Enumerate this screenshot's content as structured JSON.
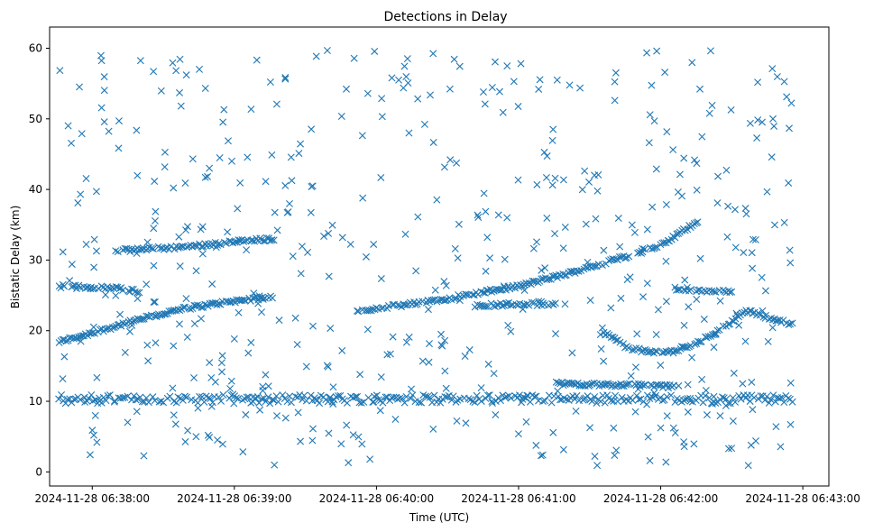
{
  "chart_data": {
    "type": "scatter",
    "title": "Detections in Delay",
    "xlabel": "Time (UTC)",
    "ylabel": "Bistatic Delay (km)",
    "marker": "x",
    "series_color": "#1f77b4",
    "xlim_seconds": [
      -18,
      311
    ],
    "x_origin": "2024-11-28 06:38:00",
    "ylim": [
      -2,
      63
    ],
    "x_ticks": [
      {
        "t": 0,
        "label": "2024-11-28 06:38:00"
      },
      {
        "t": 60,
        "label": "2024-11-28 06:39:00"
      },
      {
        "t": 120,
        "label": "2024-11-28 06:40:00"
      },
      {
        "t": 180,
        "label": "2024-11-28 06:41:00"
      },
      {
        "t": 240,
        "label": "2024-11-28 06:42:00"
      },
      {
        "t": 300,
        "label": "2024-11-28 06:43:00"
      }
    ],
    "y_ticks": [
      0,
      10,
      20,
      30,
      40,
      50,
      60
    ],
    "x_range_seconds": [
      -14,
      296
    ],
    "tracks": [
      {
        "name": "rising-track-a",
        "points": [
          [
            -14,
            18.4
          ],
          [
            -1,
            19.6
          ],
          [
            20,
            21.6
          ],
          [
            40,
            23.2
          ],
          [
            60,
            24.2
          ],
          [
            77,
            24.8
          ]
        ]
      },
      {
        "name": "rising-track-b",
        "points": [
          [
            111,
            22.8
          ],
          [
            140,
            24.0
          ],
          [
            180,
            26.3
          ],
          [
            200,
            28.0
          ],
          [
            240,
            32.0
          ],
          [
            256,
            35.6
          ]
        ]
      },
      {
        "name": "plateau-31-33",
        "points": [
          [
            10,
            31.3
          ],
          [
            40,
            31.9
          ],
          [
            60,
            32.6
          ],
          [
            77,
            33.0
          ]
        ]
      },
      {
        "name": "plateau-26",
        "points": [
          [
            -14,
            26.3
          ],
          [
            10,
            26.0
          ],
          [
            20,
            25.6
          ]
        ]
      },
      {
        "name": "plateau-23-24",
        "points": [
          [
            161,
            23.5
          ],
          [
            180,
            23.8
          ],
          [
            196,
            23.7
          ]
        ]
      },
      {
        "name": "curve-17",
        "points": [
          [
            216,
            19.8
          ],
          [
            226,
            17.6
          ],
          [
            236,
            16.9
          ],
          [
            246,
            17.1
          ],
          [
            256,
            18.4
          ],
          [
            266,
            20.4
          ],
          [
            276,
            22.8
          ],
          [
            296,
            20.9
          ]
        ]
      },
      {
        "name": "plateau-12",
        "points": [
          [
            196,
            12.5
          ],
          [
            226,
            12.3
          ],
          [
            246,
            12.1
          ]
        ]
      },
      {
        "name": "band-10-11",
        "points": [
          [
            -14,
            10.3
          ],
          [
            296,
            10.3
          ]
        ]
      },
      {
        "name": "plateau-27",
        "points": [
          [
            246,
            26.0
          ],
          [
            270,
            25.5
          ]
        ]
      }
    ],
    "noise_points": 520
  }
}
